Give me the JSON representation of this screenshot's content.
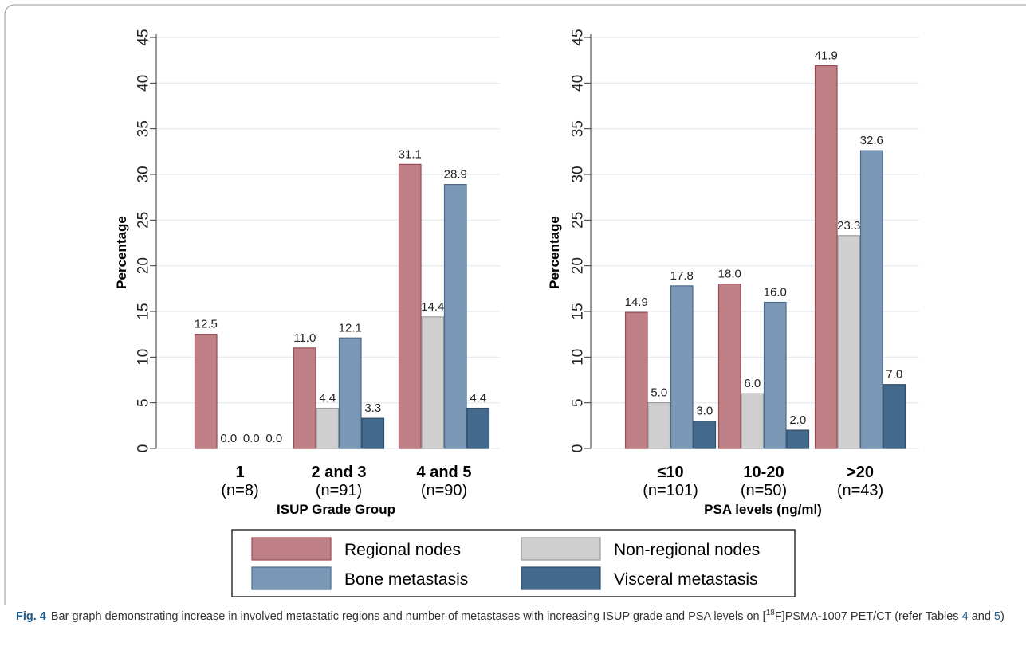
{
  "chart_data": [
    {
      "type": "bar",
      "categories": [
        "1",
        "2 and 3",
        "4 and 5"
      ],
      "category_subtitles": [
        "(n=8)",
        "(n=91)",
        "(n=90)"
      ],
      "series": [
        {
          "name": "Regional nodes",
          "values": [
            12.5,
            11.0,
            31.1
          ]
        },
        {
          "name": "Non-regional nodes",
          "values": [
            0.0,
            4.4,
            14.4
          ]
        },
        {
          "name": "Bone metastasis",
          "values": [
            0.0,
            12.1,
            28.9
          ]
        },
        {
          "name": "Visceral metastasis",
          "values": [
            0.0,
            3.3,
            4.4
          ]
        }
      ],
      "value_labels": [
        [
          "12.5",
          "11.0",
          "31.1"
        ],
        [
          "0.0",
          "4.4",
          "14.4"
        ],
        [
          "0.0",
          "12.1",
          "28.9"
        ],
        [
          "0.0",
          "3.3",
          "4.4"
        ]
      ],
      "xlabel": "ISUP Grade Group",
      "ylabel": "Percentage",
      "ylim": [
        0,
        45
      ],
      "yticks": [
        "0",
        "5",
        "10",
        "15",
        "20",
        "25",
        "30",
        "35",
        "40",
        "45"
      ],
      "grid": true
    },
    {
      "type": "bar",
      "categories": [
        "≤10",
        "10-20",
        ">20"
      ],
      "category_subtitles": [
        "(n=101)",
        "(n=50)",
        "(n=43)"
      ],
      "series": [
        {
          "name": "Regional nodes",
          "values": [
            14.9,
            18.0,
            41.9
          ]
        },
        {
          "name": "Non-regional nodes",
          "values": [
            5.0,
            6.0,
            23.3
          ]
        },
        {
          "name": "Bone metastasis",
          "values": [
            17.8,
            16.0,
            32.6
          ]
        },
        {
          "name": "Visceral metastasis",
          "values": [
            3.0,
            2.0,
            7.0
          ]
        }
      ],
      "value_labels": [
        [
          "14.9",
          "18.0",
          "41.9"
        ],
        [
          "5.0",
          "6.0",
          "23.3"
        ],
        [
          "17.8",
          "16.0",
          "32.6"
        ],
        [
          "3.0",
          "2.0",
          "7.0"
        ]
      ],
      "xlabel": "PSA levels (ng/ml)",
      "ylabel": "Percentage",
      "ylim": [
        0,
        45
      ],
      "yticks": [
        "0",
        "5",
        "10",
        "15",
        "20",
        "25",
        "30",
        "35",
        "40",
        "45"
      ],
      "grid": true
    }
  ],
  "legend": {
    "placement": "bottom",
    "items": [
      "Regional nodes",
      "Non-regional nodes",
      "Bone metastasis",
      "Visceral metastasis"
    ]
  },
  "colors": {
    "Regional nodes": "#bf8085",
    "Non-regional nodes": "#cfcfcf",
    "Bone metastasis": "#7a97b5",
    "Visceral metastasis": "#436a8c",
    "grid": "#e3eaee",
    "caption_accent": "#1d5a8c"
  },
  "caption": {
    "label": "Fig. 4",
    "text_before_sup": "Bar graph demonstrating increase in involved metastatic regions and number of metastases with increasing ISUP grade and PSA levels on [",
    "sup": "18",
    "text_after_sup": "F]PSMA-1007 PET/CT (refer Tables ",
    "ref1": "4",
    "and": " and ",
    "ref2": "5",
    "close": ")"
  }
}
